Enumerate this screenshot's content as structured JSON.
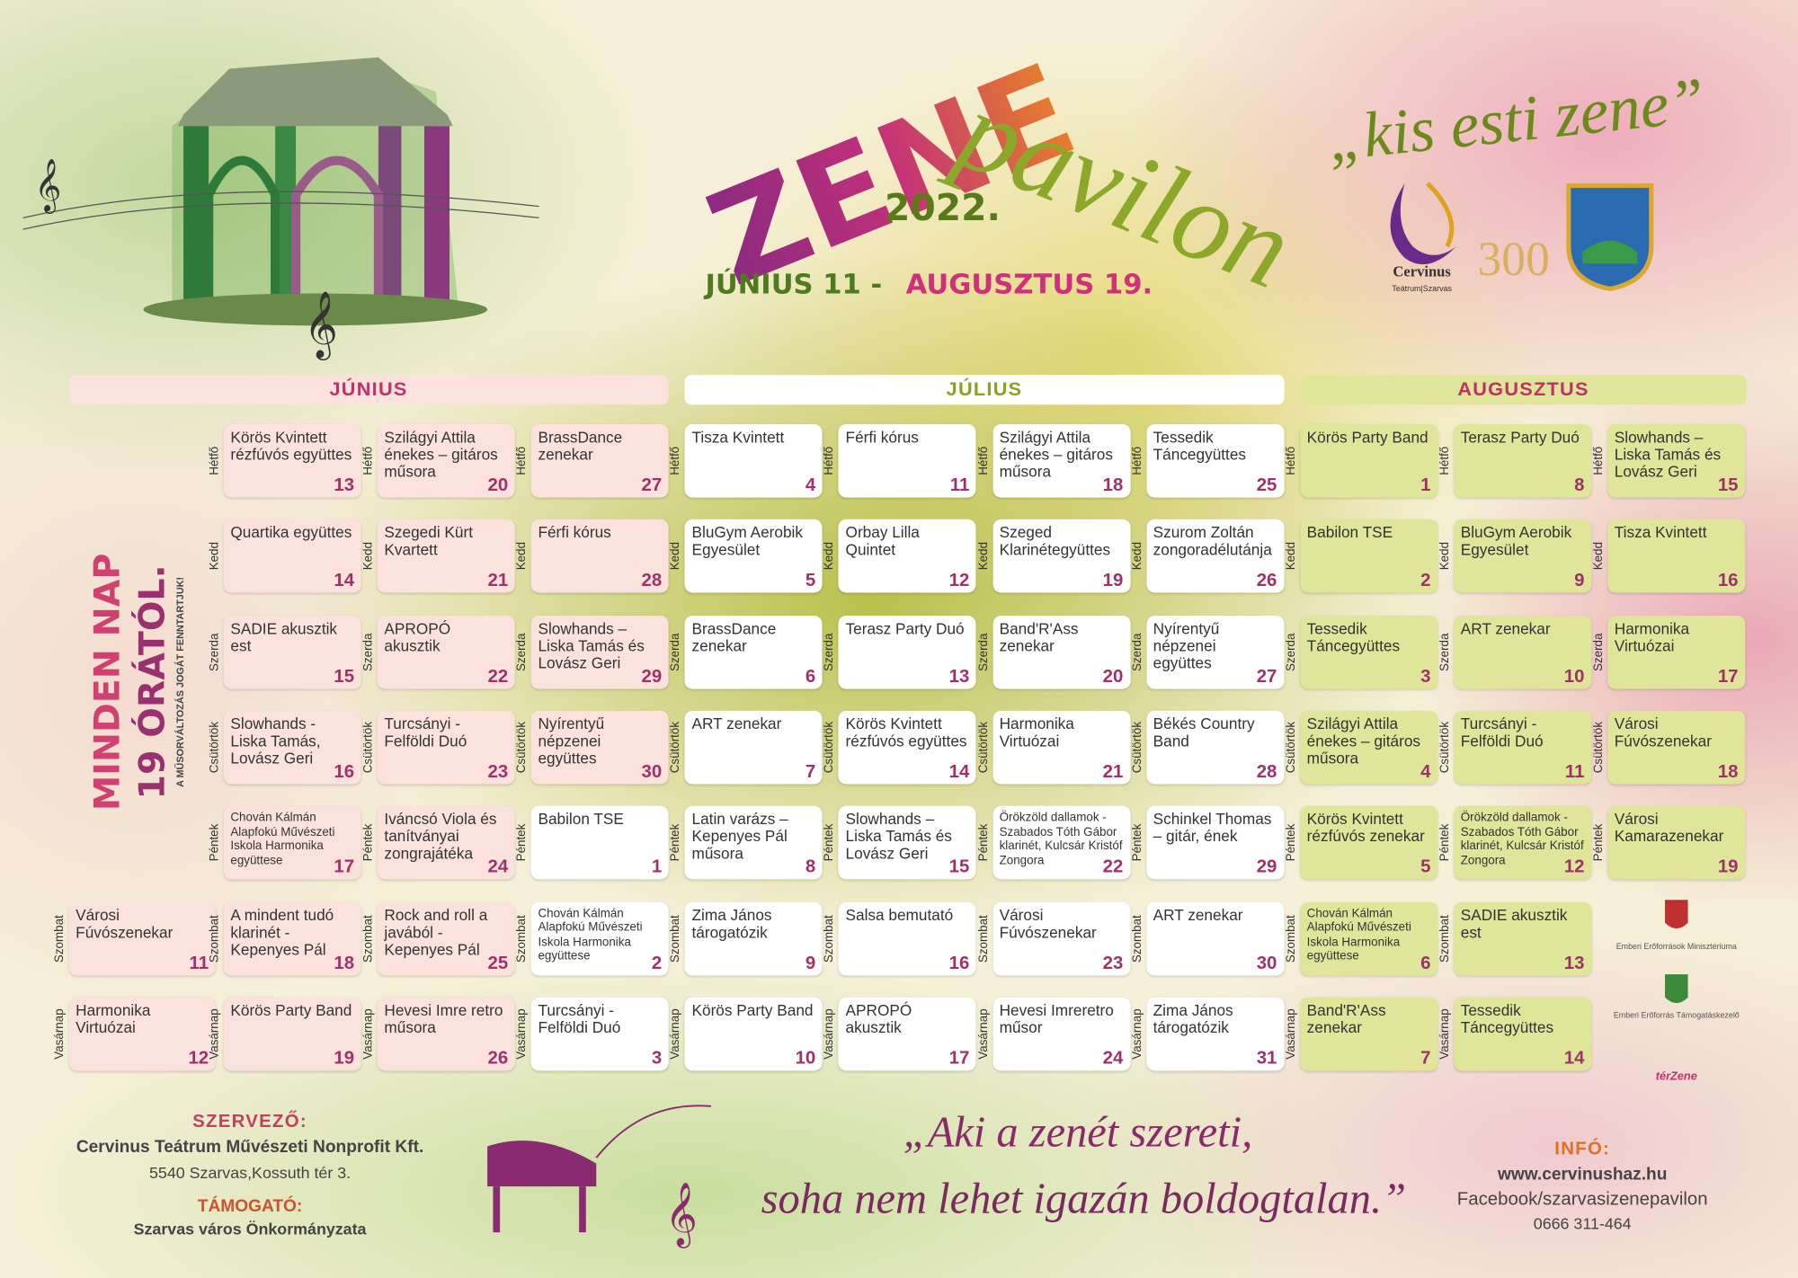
{
  "header": {
    "title_1": "ZENE",
    "title_2": "pavilon",
    "year": "2022.",
    "dates_1": "JÚNIUS 11 -",
    "dates_2": "AUGUSZTUS 19.",
    "motto": "„kis esti zene”",
    "logo_name": "Cervinus",
    "logo_sub": "Teátrum|Szarvas",
    "logo_300": "300"
  },
  "side": {
    "line_1": "MINDEN NAP",
    "line_2": "19 ÓRÁTÓL.",
    "note": "A MŰSORVÁLTOZÁS JOGÁT FENNTARTJUK!"
  },
  "calendar": {
    "months": [
      {
        "name": "JÚNIUS",
        "color": "#fbe2dc",
        "text_color": "#c0306a"
      },
      {
        "name": "JÚLIUS",
        "color": "#ffffff",
        "text_color": "#8aa21e"
      },
      {
        "name": "AUGUSZTUS",
        "color": "#dfe69a",
        "text_color": "#c0306a"
      }
    ],
    "days": [
      "Hétfő",
      "Kedd",
      "Szerda",
      "Csütörtök",
      "Péntek",
      "Szombat",
      "Vasárnap"
    ],
    "columns": [
      {
        "cells": [
          null,
          null,
          null,
          null,
          null,
          {
            "text": "Városi Fúvószenekar",
            "num": 11,
            "color": "#fbe2dc"
          },
          {
            "text": "Harmonika Virtuózai",
            "num": 12,
            "color": "#fbe2dc"
          }
        ]
      },
      {
        "cells": [
          {
            "text": "Körös Kvintett rézfúvós együttes",
            "num": 13,
            "color": "#fbe2dc"
          },
          {
            "text": "Quartika együttes",
            "num": 14,
            "color": "#fbe2dc"
          },
          {
            "text": "SADIE akusztik est",
            "num": 15,
            "color": "#fbe2dc"
          },
          {
            "text": "Slowhands - Liska Tamás, Lovász Geri",
            "num": 16,
            "color": "#fbe2dc"
          },
          {
            "text": "Chován Kálmán Alapfokú Művészeti Iskola Harmonika együttese",
            "num": 17,
            "color": "#fbe2dc"
          },
          {
            "text": "A mindent tudó klarinét - Kepenyes Pál",
            "num": 18,
            "color": "#fbe2dc"
          },
          {
            "text": "Körös Party Band",
            "num": 19,
            "color": "#fbe2dc"
          }
        ]
      },
      {
        "cells": [
          {
            "text": "Szilágyi Attila énekes – gitáros műsora",
            "num": 20,
            "color": "#fbe2dc"
          },
          {
            "text": "Szegedi Kürt Kvartett",
            "num": 21,
            "color": "#fbe2dc"
          },
          {
            "text": "APROPÓ akusztik",
            "num": 22,
            "color": "#fbe2dc"
          },
          {
            "text": "Turcsányi - Felföldi Duó",
            "num": 23,
            "color": "#fbe2dc"
          },
          {
            "text": "Iváncsó Viola és tanítványai zongrajátéka",
            "num": 24,
            "color": "#fbe2dc"
          },
          {
            "text": "Rock and roll a javából - Kepenyes Pál",
            "num": 25,
            "color": "#fbe2dc"
          },
          {
            "text": "Hevesi Imre retro műsora",
            "num": 26,
            "color": "#fbe2dc"
          }
        ]
      },
      {
        "cells": [
          {
            "text": "BrassDance zenekar",
            "num": 27,
            "color": "#fbe2dc"
          },
          {
            "text": "Férfi kórus",
            "num": 28,
            "color": "#fbe2dc"
          },
          {
            "text": "Slowhands – Liska Tamás és Lovász Geri",
            "num": 29,
            "color": "#fbe2dc"
          },
          {
            "text": "Nyírentyű népzenei együttes",
            "num": 30,
            "color": "#fbe2dc"
          },
          {
            "text": "Babilon TSE",
            "num": 1,
            "color": "#ffffff"
          },
          {
            "text": "Chován Kálmán Alapfokú Művészeti Iskola Harmonika együttese",
            "num": 2,
            "color": "#ffffff"
          },
          {
            "text": "Turcsányi - Felföldi Duó",
            "num": 3,
            "color": "#ffffff"
          }
        ]
      },
      {
        "cells": [
          {
            "text": "Tisza Kvintett",
            "num": 4,
            "color": "#ffffff"
          },
          {
            "text": "BluGym Aerobik Egyesület",
            "num": 5,
            "color": "#ffffff"
          },
          {
            "text": "BrassDance zenekar",
            "num": 6,
            "color": "#ffffff"
          },
          {
            "text": "ART zenekar",
            "num": 7,
            "color": "#ffffff"
          },
          {
            "text": "Latin varázs – Kepenyes Pál műsora",
            "num": 8,
            "color": "#ffffff"
          },
          {
            "text": "Zima János tárogatózik",
            "num": 9,
            "color": "#ffffff"
          },
          {
            "text": "Körös Party Band",
            "num": 10,
            "color": "#ffffff"
          }
        ]
      },
      {
        "cells": [
          {
            "text": "Férfi kórus",
            "num": 11,
            "color": "#ffffff"
          },
          {
            "text": "Orbay Lilla Quintet",
            "num": 12,
            "color": "#ffffff"
          },
          {
            "text": "Terasz Party Duó",
            "num": 13,
            "color": "#ffffff"
          },
          {
            "text": "Körös Kvintett rézfúvós együttes",
            "num": 14,
            "color": "#ffffff"
          },
          {
            "text": "Slowhands – Liska Tamás és Lovász Geri",
            "num": 15,
            "color": "#ffffff"
          },
          {
            "text": "Salsa bemutató",
            "num": 16,
            "color": "#ffffff"
          },
          {
            "text": "APROPÓ akusztik",
            "num": 17,
            "color": "#ffffff"
          }
        ]
      },
      {
        "cells": [
          {
            "text": "Szilágyi Attila énekes – gitáros műsora",
            "num": 18,
            "color": "#ffffff"
          },
          {
            "text": "Szeged Klarinétegyüttes",
            "num": 19,
            "color": "#ffffff"
          },
          {
            "text": "Band'R'Ass zenekar",
            "num": 20,
            "color": "#ffffff"
          },
          {
            "text": "Harmonika Virtuózai",
            "num": 21,
            "color": "#ffffff"
          },
          {
            "text": "Örökzöld dallamok - Szabados Tóth Gábor klarinét, Kulcsár Kristóf Zongora",
            "num": 22,
            "color": "#ffffff"
          },
          {
            "text": "Városi Fúvószenekar",
            "num": 23,
            "color": "#ffffff"
          },
          {
            "text": "Hevesi Imreretro műsor",
            "num": 24,
            "color": "#ffffff"
          }
        ]
      },
      {
        "cells": [
          {
            "text": "Tessedik Táncegyüttes",
            "num": 25,
            "color": "#ffffff"
          },
          {
            "text": "Szurom Zoltán zongoradélutánja",
            "num": 26,
            "color": "#ffffff"
          },
          {
            "text": "Nyírentyű népzenei együttes",
            "num": 27,
            "color": "#ffffff"
          },
          {
            "text": "Békés Country Band",
            "num": 28,
            "color": "#ffffff"
          },
          {
            "text": "Schinkel Thomas – gitár, ének",
            "num": 29,
            "color": "#ffffff"
          },
          {
            "text": "ART zenekar",
            "num": 30,
            "color": "#ffffff"
          },
          {
            "text": "Zima János tárogatózik",
            "num": 31,
            "color": "#ffffff"
          }
        ]
      },
      {
        "cells": [
          {
            "text": "Körös Party Band",
            "num": 1,
            "color": "#dfe69a"
          },
          {
            "text": "Babilon TSE",
            "num": 2,
            "color": "#dfe69a"
          },
          {
            "text": "Tessedik Táncegyüttes",
            "num": 3,
            "color": "#dfe69a"
          },
          {
            "text": "Szilágyi Attila énekes – gitáros műsora",
            "num": 4,
            "color": "#dfe69a"
          },
          {
            "text": "Körös Kvintett rézfúvós zenekar",
            "num": 5,
            "color": "#dfe69a"
          },
          {
            "text": "Chován Kálmán Alapfokú Művészeti Iskola Harmonika együttese",
            "num": 6,
            "color": "#dfe69a"
          },
          {
            "text": "Band'R'Ass zenekar",
            "num": 7,
            "color": "#dfe69a"
          }
        ]
      },
      {
        "cells": [
          {
            "text": "Terasz Party Duó",
            "num": 8,
            "color": "#dfe69a"
          },
          {
            "text": "BluGym Aerobik Egyesület",
            "num": 9,
            "color": "#dfe69a"
          },
          {
            "text": "ART zenekar",
            "num": 10,
            "color": "#dfe69a"
          },
          {
            "text": "Turcsányi - Felföldi Duó",
            "num": 11,
            "color": "#dfe69a"
          },
          {
            "text": "Örökzöld dallamok - Szabados Tóth Gábor klarinét, Kulcsár Kristóf Zongora",
            "num": 12,
            "color": "#dfe69a"
          },
          {
            "text": "SADIE akusztik est",
            "num": 13,
            "color": "#dfe69a"
          },
          {
            "text": "Tessedik Táncegyüttes",
            "num": 14,
            "color": "#dfe69a"
          }
        ]
      },
      {
        "cells": [
          {
            "text": "Slowhands – Liska Tamás és Lovász Geri",
            "num": 15,
            "color": "#dfe69a"
          },
          {
            "text": "Tisza Kvintett",
            "num": 16,
            "color": "#dfe69a"
          },
          {
            "text": "Harmonika Virtuózai",
            "num": 17,
            "color": "#dfe69a"
          },
          {
            "text": "Városi Fúvószenekar",
            "num": 18,
            "color": "#dfe69a"
          },
          {
            "text": "Városi Kamarazenekar",
            "num": 19,
            "color": "#dfe69a"
          },
          null,
          null
        ]
      }
    ]
  },
  "sponsors": [
    "Emberi Erőforrások Minisztériuma",
    "Emberi Erőforrás Támogatáskezelő",
    "térZene"
  ],
  "footer": {
    "organizer_label": "SZERVEZŐ:",
    "organizer": "Cervinus Teátrum Művészeti Nonprofit Kft.",
    "address": "5540 Szarvas,Kossuth tér 3.",
    "supporter_label": "TÁMOGATÓ:",
    "supporter": "Szarvas város Önkormányzata",
    "quote_1": "„Aki a zenét szereti,",
    "quote_2": "soha nem lehet igazán boldogtalan.”",
    "info_label": "INFÓ:",
    "web": "www.cervinushaz.hu",
    "facebook": "Facebook/szarvasizenepavilon",
    "phone": "0666 311-464"
  }
}
